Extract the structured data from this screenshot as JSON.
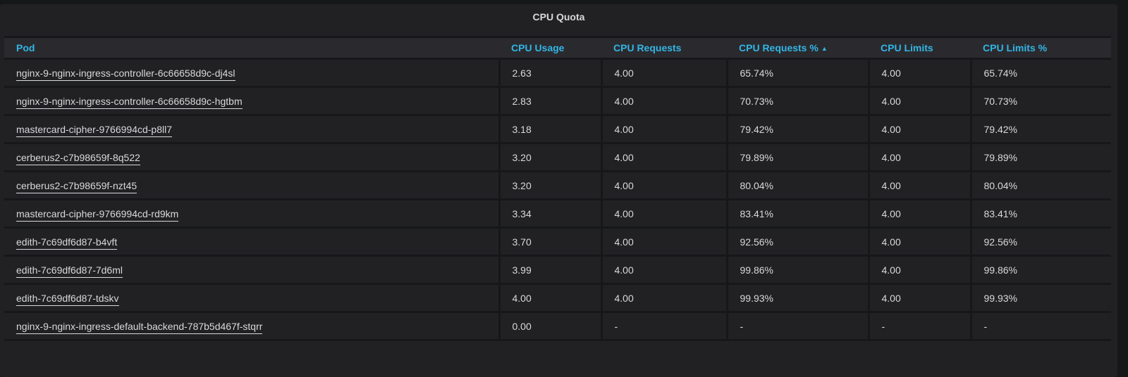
{
  "panel": {
    "title": "CPU Quota"
  },
  "table": {
    "columns": [
      "Pod",
      "CPU Usage",
      "CPU Requests",
      "CPU Requests %",
      "CPU Limits",
      "CPU Limits %"
    ],
    "sort": {
      "column": "CPU Requests %",
      "direction": "ascending",
      "indicator": "▲"
    },
    "rows": [
      [
        "nginx-9-nginx-ingress-controller-6c66658d9c-dj4sl",
        "2.63",
        "4.00",
        "65.74%",
        "4.00",
        "65.74%"
      ],
      [
        "nginx-9-nginx-ingress-controller-6c66658d9c-hgtbm",
        "2.83",
        "4.00",
        "70.73%",
        "4.00",
        "70.73%"
      ],
      [
        "mastercard-cipher-9766994cd-p8ll7",
        "3.18",
        "4.00",
        "79.42%",
        "4.00",
        "79.42%"
      ],
      [
        "cerberus2-c7b98659f-8q522",
        "3.20",
        "4.00",
        "79.89%",
        "4.00",
        "79.89%"
      ],
      [
        "cerberus2-c7b98659f-nzt45",
        "3.20",
        "4.00",
        "80.04%",
        "4.00",
        "80.04%"
      ],
      [
        "mastercard-cipher-9766994cd-rd9km",
        "3.34",
        "4.00",
        "83.41%",
        "4.00",
        "83.41%"
      ],
      [
        "edith-7c69df6d87-b4vft",
        "3.70",
        "4.00",
        "92.56%",
        "4.00",
        "92.56%"
      ],
      [
        "edith-7c69df6d87-7d6ml",
        "3.99",
        "4.00",
        "99.86%",
        "4.00",
        "99.86%"
      ],
      [
        "edith-7c69df6d87-tdskv",
        "4.00",
        "4.00",
        "99.93%",
        "4.00",
        "99.93%"
      ],
      [
        "nginx-9-nginx-ingress-default-backend-787b5d467f-stqrr",
        "0.00",
        "-",
        "-",
        "-",
        "-"
      ]
    ]
  },
  "colors": {
    "header_text": "#33b5e5",
    "panel_bg": "#212124",
    "page_bg": "#161719"
  }
}
